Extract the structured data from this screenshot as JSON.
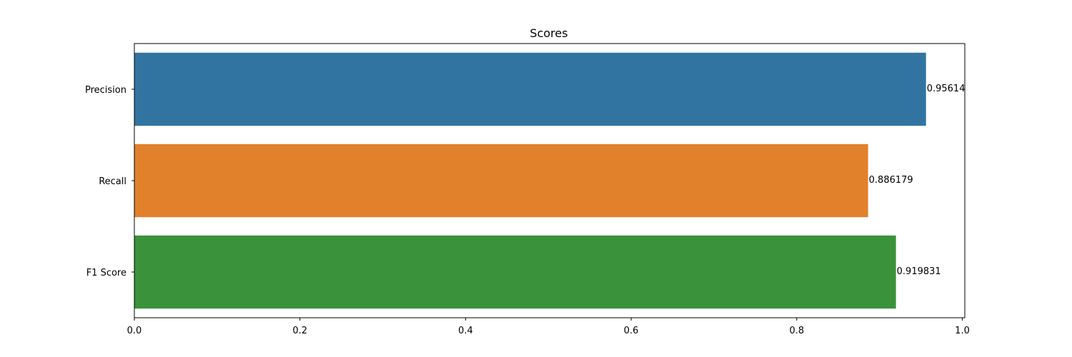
{
  "chart_data": {
    "type": "bar",
    "orientation": "horizontal",
    "title": "Scores",
    "xlabel": "",
    "ylabel": "",
    "categories": [
      "Precision",
      "Recall",
      "F1 Score"
    ],
    "values": [
      0.95614,
      0.886179,
      0.919831
    ],
    "value_labels": [
      "0.95614",
      "0.886179",
      "0.919831"
    ],
    "colors": [
      "#3274a1",
      "#e1812c",
      "#3a923a"
    ],
    "xlim": [
      0,
      1.003
    ],
    "xticks": [
      0.0,
      0.2,
      0.4,
      0.6,
      0.8,
      1.0
    ],
    "xtick_labels": [
      "0.0",
      "0.2",
      "0.4",
      "0.6",
      "0.8",
      "1.0"
    ],
    "grid": false,
    "legend": "none"
  }
}
